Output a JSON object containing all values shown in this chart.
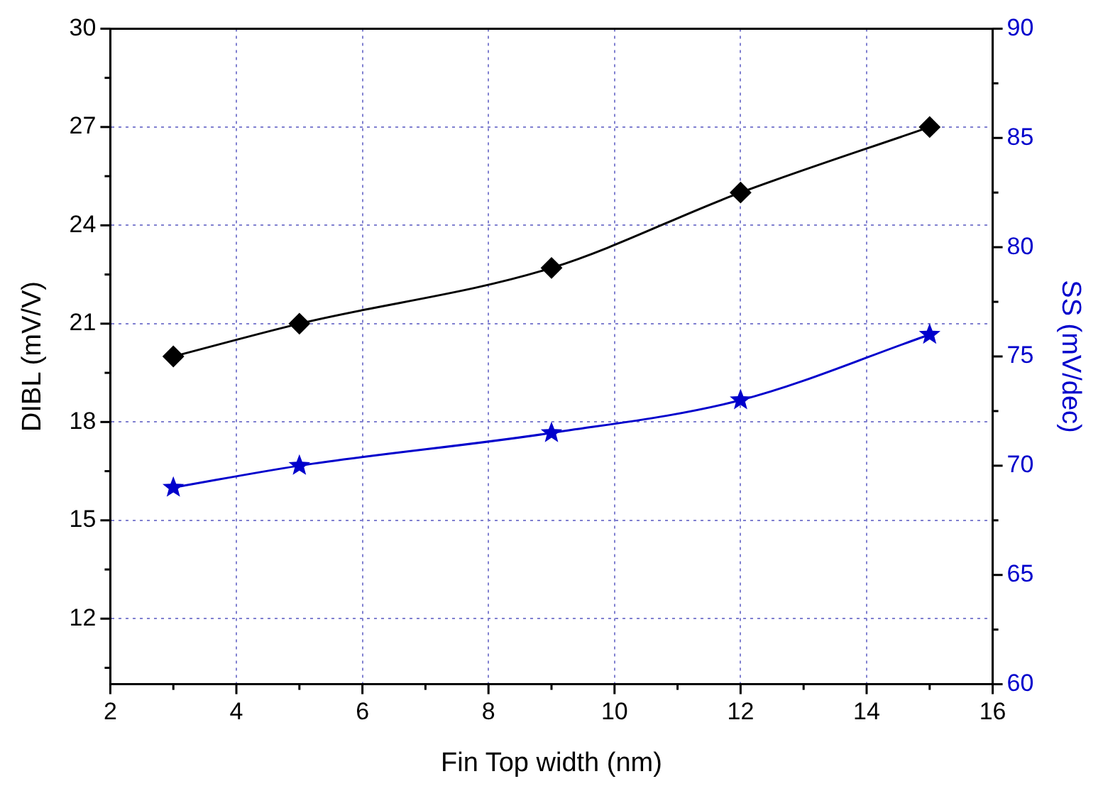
{
  "chart_data": {
    "type": "line",
    "xlabel": "Fin Top width (nm)",
    "ylabel": "DIBL (mV/V)",
    "y2label": "SS (mV/dec)",
    "x": [
      3,
      5,
      9,
      12,
      15
    ],
    "series": [
      {
        "color": "#000000",
        "marker": "diamond",
        "values": [
          20,
          21,
          22.7,
          25,
          27
        ]
      },
      {
        "color": "#0000cc",
        "marker": "star",
        "axis": "y2",
        "values": [
          69,
          70,
          71.5,
          73,
          76
        ]
      }
    ],
    "xlim": [
      2,
      16
    ],
    "xticks": [
      2,
      4,
      6,
      8,
      10,
      12,
      14,
      16
    ],
    "ylim": [
      10,
      30
    ],
    "yticks": [
      12,
      15,
      18,
      21,
      24,
      27,
      30
    ],
    "y2lim": [
      60,
      90
    ],
    "y2ticks": [
      60,
      65,
      70,
      75,
      80,
      85,
      90
    ],
    "grid": true,
    "legend": false
  }
}
